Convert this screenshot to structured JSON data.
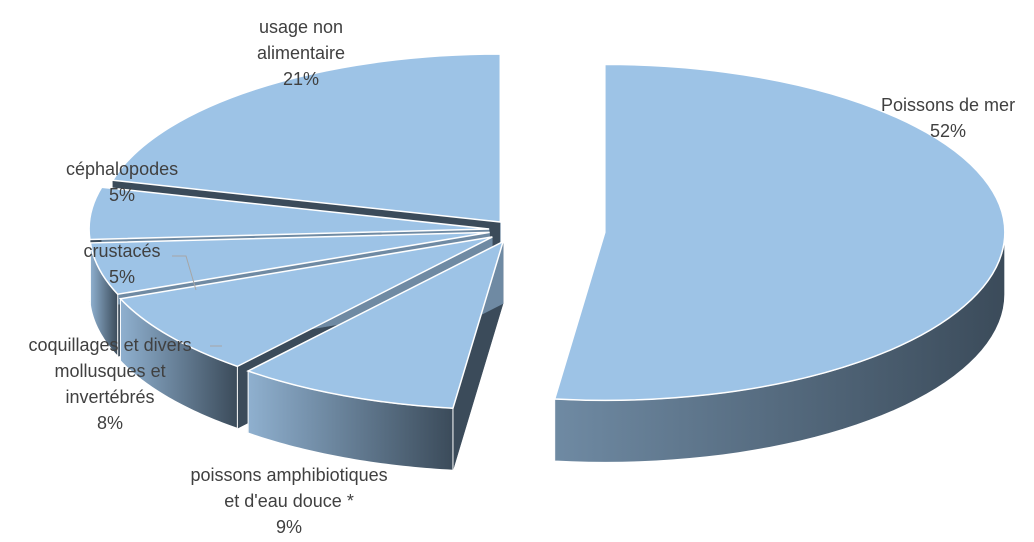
{
  "chart_data": {
    "type": "pie",
    "style": "3d-exploded",
    "categories": [
      "Poissons de mer",
      "poissons amphibiotiques et d'eau douce *",
      "coquillages et divers mollusques et invertébrés",
      "crustacés",
      "céphalopodes",
      "usage non alimentaire"
    ],
    "values": [
      52,
      9,
      8,
      5,
      5,
      21
    ],
    "value_labels": [
      "52%",
      "9%",
      "8%",
      "5%",
      "5%",
      "21%"
    ],
    "label_lines": [
      [
        "Poissons de mer"
      ],
      [
        "poissons amphibiotiques",
        "et d'eau douce *"
      ],
      [
        "coquillages et divers",
        "mollusques et",
        "invertébrés"
      ],
      [
        "crustacés"
      ],
      [
        "céphalopodes"
      ],
      [
        "usage non",
        "alimentaire"
      ]
    ],
    "legend": "none",
    "colors": {
      "top": "#9dc3e6",
      "top_edge": "#ffffff",
      "side_dark": "#3b4b5a",
      "side_mid": "#6f8aa3",
      "side_light": "#8fb0cf",
      "leader_line": "#a6a6a6"
    }
  }
}
